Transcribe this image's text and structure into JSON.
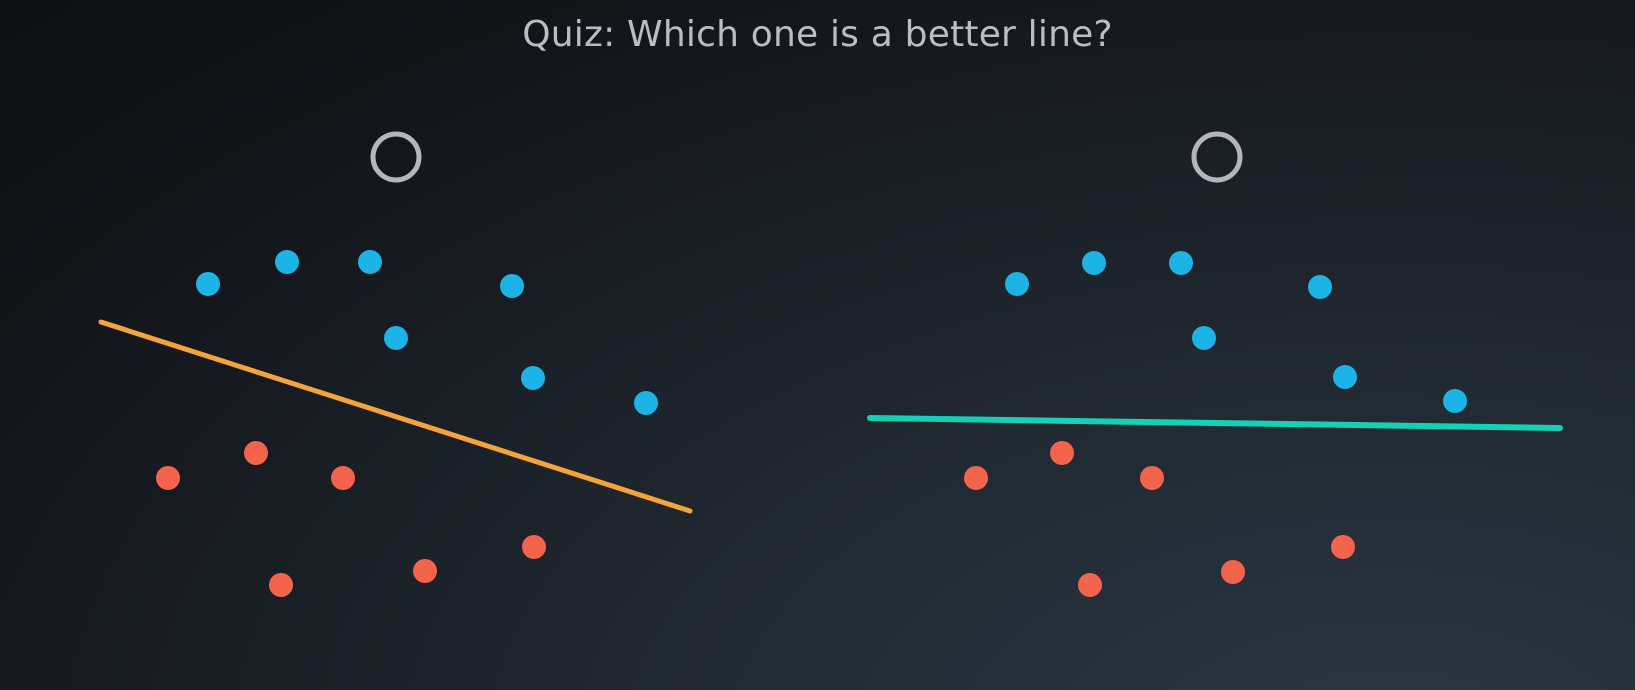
{
  "title": "Quiz: Which one is a better line?",
  "colors": {
    "blue_point": "#1cb3e6",
    "red_point": "#f4644c",
    "left_line": "#f5a33b",
    "right_line": "#14d1b6",
    "option_ring": "#b3b6ba"
  },
  "options": [
    {
      "id": "left",
      "line_color": "#f5a33b",
      "icon": "radio-ring"
    },
    {
      "id": "right",
      "line_color": "#14d1b6",
      "icon": "radio-ring"
    }
  ]
}
